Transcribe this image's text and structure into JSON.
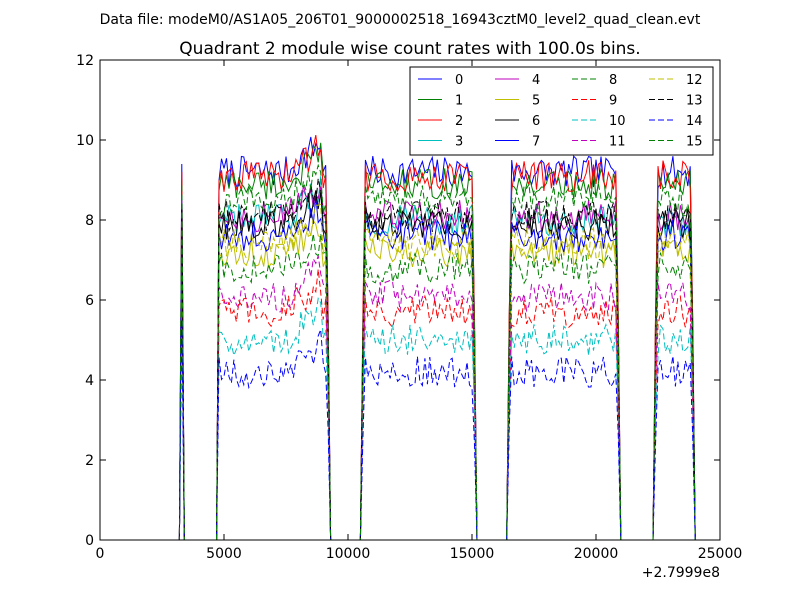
{
  "header": {
    "suptitle": "Data file: modeM0/AS1A05_206T01_9000002518_16943cztM0_level2_quad_clean.evt"
  },
  "chart_data": {
    "type": "line",
    "title": "Quadrant 2 module wise count rates with 100.0s bins.",
    "xlabel": "",
    "ylabel": "",
    "x_offset_label": "+2.7999e8",
    "xlim": [
      0,
      25000
    ],
    "ylim": [
      0,
      12
    ],
    "xticks": [
      0,
      5000,
      10000,
      15000,
      20000,
      25000
    ],
    "yticks": [
      0,
      2,
      4,
      6,
      8,
      10,
      12
    ],
    "grid": false,
    "legend_location": "top-right",
    "legend_columns": 4,
    "bin_seconds": 100,
    "good_time_intervals": [
      [
        3300,
        9300
      ],
      [
        10500,
        15200
      ],
      [
        16400,
        21000
      ],
      [
        22300,
        24000
      ]
    ],
    "series": [
      {
        "name": "0",
        "color": "#0000ff",
        "style": "solid",
        "level": 9.2,
        "initial_spike": 9.4
      },
      {
        "name": "1",
        "color": "#008000",
        "style": "solid",
        "level": 8.9,
        "initial_spike": 9.0
      },
      {
        "name": "2",
        "color": "#ff0000",
        "style": "solid",
        "level": 9.1,
        "initial_spike": 9.2
      },
      {
        "name": "3",
        "color": "#00bfbf",
        "style": "solid",
        "level": 8.0,
        "initial_spike": 8.6
      },
      {
        "name": "4",
        "color": "#bf00bf",
        "style": "solid",
        "level": 8.1,
        "initial_spike": 8.5
      },
      {
        "name": "5",
        "color": "#bfbf00",
        "style": "solid",
        "level": 7.2,
        "initial_spike": 8.0
      },
      {
        "name": "6",
        "color": "#000000",
        "style": "solid",
        "level": 7.9,
        "initial_spike": 8.3
      },
      {
        "name": "7",
        "color": "#0000ff",
        "style": "solid",
        "level": 7.6,
        "initial_spike": 8.1
      },
      {
        "name": "8",
        "color": "#008000",
        "style": "dashed",
        "level": 6.8,
        "initial_spike": 7.8
      },
      {
        "name": "9",
        "color": "#ff0000",
        "style": "dashed",
        "level": 5.7,
        "initial_spike": 6.8
      },
      {
        "name": "10",
        "color": "#00bfbf",
        "style": "dashed",
        "level": 5.0,
        "initial_spike": 6.2
      },
      {
        "name": "11",
        "color": "#bf00bf",
        "style": "dashed",
        "level": 6.1,
        "initial_spike": 7.0
      },
      {
        "name": "12",
        "color": "#bfbf00",
        "style": "dashed",
        "level": 7.4,
        "initial_spike": 8.0
      },
      {
        "name": "13",
        "color": "#000000",
        "style": "dashed",
        "level": 8.1,
        "initial_spike": 8.4
      },
      {
        "name": "14",
        "color": "#0000ff",
        "style": "dashed",
        "level": 4.2,
        "initial_spike": 5.5
      },
      {
        "name": "15",
        "color": "#008000",
        "style": "dashed",
        "level": 8.5,
        "initial_spike": 8.9
      }
    ]
  }
}
